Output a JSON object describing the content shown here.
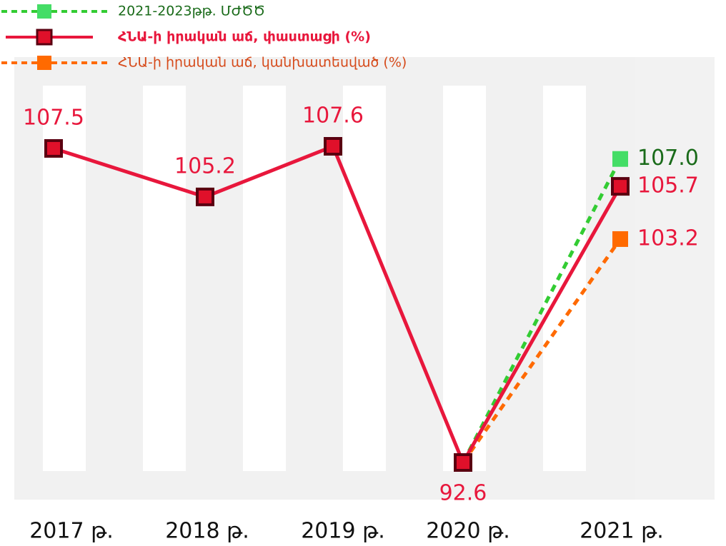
{
  "chart_data": {
    "type": "line",
    "categories": [
      "2017 թ.",
      "2018 թ.",
      "2019 թ.",
      "2020 թ.",
      "2021 թ."
    ],
    "series": [
      {
        "name": "2021-2023թթ. ՄԺԾԾ",
        "color": "#33cc33",
        "marker_color": "#44dd66",
        "label_color": "#1a6b1a",
        "dashed": true,
        "values": [
          null,
          null,
          null,
          92.6,
          107.0
        ],
        "value_labels": [
          null,
          null,
          null,
          null,
          "107.0"
        ]
      },
      {
        "name": "ՀՆԱ-ի իրական աճ, փաստացի (%)",
        "color": "#e8173c",
        "marker_color": "#e0102a",
        "label_color": "#e8173c",
        "dashed": false,
        "values": [
          107.5,
          105.2,
          107.6,
          92.6,
          105.7
        ]
      },
      {
        "name": "ՀՆԱ-ի իրական աճ, կանխատեսված (%)",
        "color": "#ff6a00",
        "marker_color": "#ff6a00",
        "label_color": "#e8173c",
        "dashed": true,
        "values": [
          null,
          null,
          null,
          92.6,
          103.2
        ]
      }
    ]
  }
}
